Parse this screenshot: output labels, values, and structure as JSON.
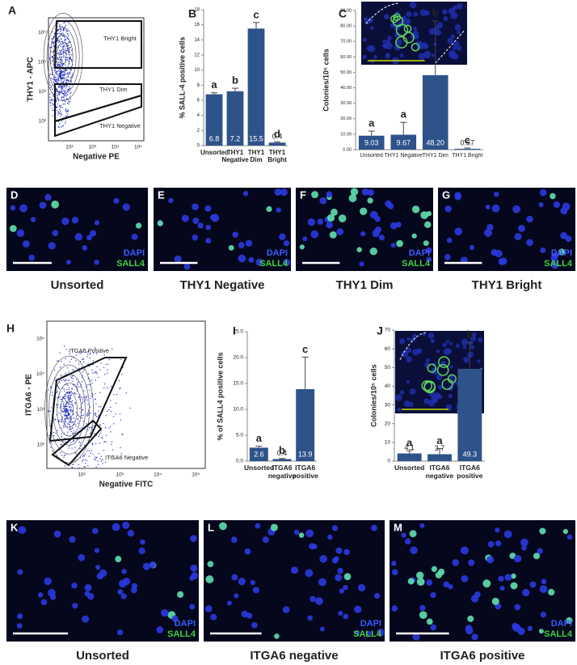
{
  "chart_data": [
    {
      "type": "bar",
      "panel": "B",
      "ylabel": "% SALL-4 positive cells",
      "categories": [
        "Unsorted",
        "THY1 Negative",
        "THY1 Dim",
        "THY1 Bright"
      ],
      "values": [
        6.8,
        7.2,
        15.5,
        0.4
      ],
      "errors": [
        0.2,
        0.4,
        0.8,
        0.1
      ],
      "annotations": [
        "a",
        "b",
        "c",
        "d"
      ],
      "color": "#2e538a",
      "ylim": [
        0,
        18
      ],
      "yticks": [
        0,
        2,
        4,
        6,
        8,
        10,
        12,
        14,
        16,
        18
      ]
    },
    {
      "type": "bar",
      "panel": "C",
      "ylabel": "Colonies/10⁵ cells",
      "categories": [
        "Unsorted",
        "THY1 Negative",
        "THY1 Dim",
        "THY1 Bright"
      ],
      "values": [
        9.03,
        9.67,
        48.2,
        0.57
      ],
      "value_labels": [
        "9.03",
        "9.67",
        "48.20",
        "0.57"
      ],
      "errors": [
        3,
        8,
        35,
        0.5
      ],
      "annotations": [
        "a",
        "a",
        "b",
        "c"
      ],
      "color": "#2e538a",
      "ylim": [
        0,
        90
      ],
      "yticks": [
        {
          "value": 0,
          "label": "0.00"
        },
        {
          "value": 10,
          "label": "10.00"
        },
        {
          "value": 20,
          "label": "20.00"
        },
        {
          "value": 30,
          "label": "30.00"
        },
        {
          "value": 40,
          "label": "40.00"
        },
        {
          "value": 50,
          "label": "50.00"
        },
        {
          "value": 60,
          "label": "60.00"
        },
        {
          "value": 70,
          "label": "70.00"
        },
        {
          "value": 80,
          "label": "80.00"
        },
        {
          "value": 90,
          "label": "90.00"
        }
      ]
    },
    {
      "type": "bar",
      "panel": "I",
      "ylabel": "% of SALL4 positive cells",
      "categories": [
        "Unsorted",
        "ITGA6 negative",
        "ITGA6 positive"
      ],
      "values": [
        2.6,
        0.4,
        13.9
      ],
      "errors": [
        0.3,
        0.1,
        6.2
      ],
      "annotations": [
        "a",
        "b",
        "c"
      ],
      "color": "#2e538a",
      "ylim": [
        0,
        25
      ],
      "yticks": [
        {
          "value": 0,
          "label": "0.0"
        },
        {
          "value": 5,
          "label": "5.0"
        },
        {
          "value": 10,
          "label": "10.0"
        },
        {
          "value": 15,
          "label": "15.0"
        },
        {
          "value": 20,
          "label": "20.0"
        },
        {
          "value": 25,
          "label": "25.0"
        }
      ]
    },
    {
      "type": "bar",
      "panel": "J",
      "ylabel": "Colonies/10⁵ cells",
      "categories": [
        "Unsorted",
        "ITGA6 negative",
        "ITGA6 positive"
      ],
      "values": [
        4.1,
        3.7,
        49.3
      ],
      "errors": [
        1.5,
        3,
        14
      ],
      "annotations": [
        "a",
        "a",
        "b"
      ],
      "color": "#2e538a",
      "ylim": [
        0,
        70
      ],
      "yticks": [
        0,
        10,
        20,
        30,
        40,
        50,
        60,
        70
      ]
    }
  ],
  "flow": [
    {
      "panel": "A",
      "ylabel": "THY1 - APC",
      "xlabel": "Negative PE",
      "xticks": [
        "10²",
        "10³",
        "10⁴",
        "10⁵"
      ],
      "yticks": [
        "10⁵",
        "10⁴",
        "10³",
        "10²"
      ],
      "gates": [
        "THY1 Bright",
        "THY1 Dim",
        "THY1 Negative"
      ]
    },
    {
      "panel": "H",
      "ylabel": "ITGA6 - PE",
      "xlabel": "Negative FITC",
      "xticks": [
        "10²",
        "10³",
        "10⁴",
        "10⁵"
      ],
      "yticks": [
        "10⁵",
        "10⁴",
        "10³",
        "10²"
      ],
      "gates": [
        "ITGA6 Positive",
        "ITGA6 Negative"
      ]
    }
  ],
  "micrographs": [
    {
      "panel": "D",
      "caption": "Unsorted",
      "stain1": "DAPI",
      "stain2": "SALL4"
    },
    {
      "panel": "E",
      "caption": "THY1 Negative",
      "stain1": "DAPI",
      "stain2": "SALL4"
    },
    {
      "panel": "F",
      "caption": "THY1 Dim",
      "stain1": "DAPI",
      "stain2": "SALL4"
    },
    {
      "panel": "G",
      "caption": "THY1 Bright",
      "stain1": "DAPI",
      "stain2": "SALL4"
    },
    {
      "panel": "K",
      "caption": "Unsorted",
      "stain1": "DAPI",
      "stain2": "SALL4"
    },
    {
      "panel": "L",
      "caption": "ITGA6 negative",
      "stain1": "DAPI",
      "stain2": "SALL4"
    },
    {
      "panel": "M",
      "caption": "ITGA6 positive",
      "stain1": "DAPI",
      "stain2": "SALL4"
    }
  ]
}
